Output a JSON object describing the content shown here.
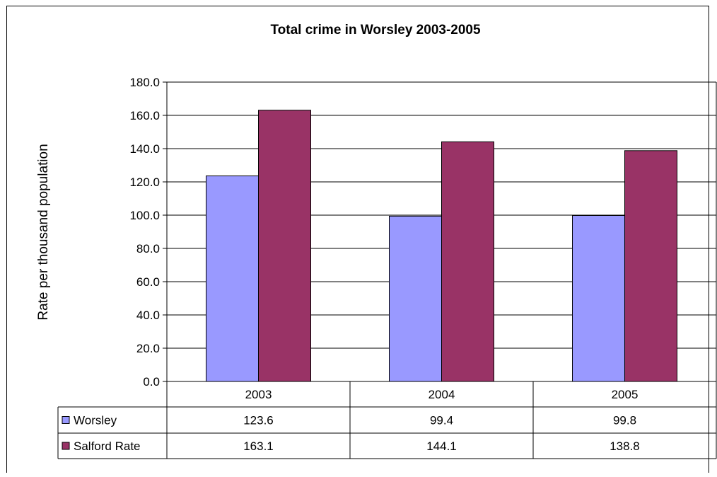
{
  "chart_data": {
    "type": "bar",
    "title": "Total crime in Worsley 2003-2005",
    "ylabel": "Rate per thousand population",
    "xlabel": "",
    "categories": [
      "2003",
      "2004",
      "2005"
    ],
    "series": [
      {
        "name": "Worsley",
        "color": "#9999FF",
        "values": [
          123.6,
          99.4,
          99.8
        ],
        "labels": [
          "123.6",
          "99.4",
          "99.8"
        ]
      },
      {
        "name": "Salford Rate",
        "color": "#993366",
        "values": [
          163.1,
          144.1,
          138.8
        ],
        "labels": [
          "163.1",
          "144.1",
          "138.8"
        ]
      }
    ],
    "ylim": [
      0,
      180
    ],
    "yticks": [
      "0.0",
      "20.0",
      "40.0",
      "60.0",
      "80.0",
      "100.0",
      "120.0",
      "140.0",
      "160.0",
      "180.0"
    ],
    "grid": true,
    "legend": "data-table"
  }
}
